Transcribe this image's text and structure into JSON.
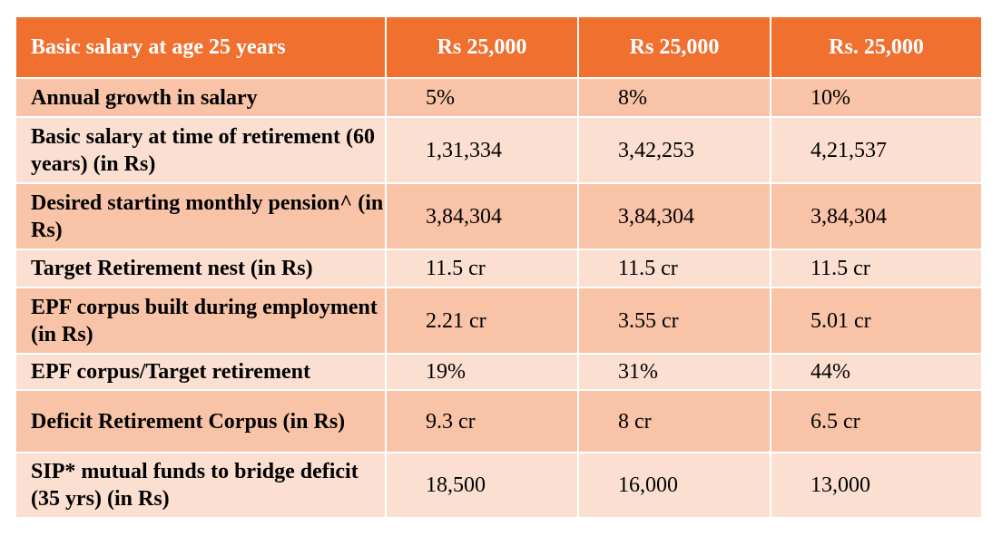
{
  "header": {
    "label": "Basic salary at age 25 years",
    "columns": [
      "Rs 25,000",
      "Rs 25,000",
      "Rs. 25,000"
    ]
  },
  "rows": [
    {
      "label": "Annual growth in salary",
      "values": [
        "5%",
        "8%",
        "10%"
      ]
    },
    {
      "label": "Basic salary at time of retirement (60 years) (in Rs)",
      "values": [
        "1,31,334",
        "3,42,253",
        "4,21,537"
      ]
    },
    {
      "label": "Desired starting monthly pension^ (in Rs)",
      "values": [
        "3,84,304",
        "3,84,304",
        "3,84,304"
      ]
    },
    {
      "label": "Target Retirement nest (in Rs)",
      "values": [
        "11.5 cr",
        "11.5 cr",
        "11.5 cr"
      ]
    },
    {
      "label": "EPF corpus built during employment (in Rs)",
      "values": [
        "2.21 cr",
        "3.55 cr",
        "5.01 cr"
      ]
    },
    {
      "label": "EPF corpus/Target retirement",
      "values": [
        "19%",
        "31%",
        "44%"
      ]
    },
    {
      "label": "Deficit Retirement Corpus (in Rs)",
      "values": [
        "9.3 cr",
        "8 cr",
        "6.5 cr"
      ]
    },
    {
      "label": "SIP* mutual funds to bridge deficit (35 yrs) (in Rs)",
      "values": [
        "18,500",
        "16,000",
        "13,000"
      ]
    }
  ],
  "colors": {
    "header": "#F07030",
    "row_dark": "#F8C3A6",
    "row_light": "#FBDFD1"
  }
}
